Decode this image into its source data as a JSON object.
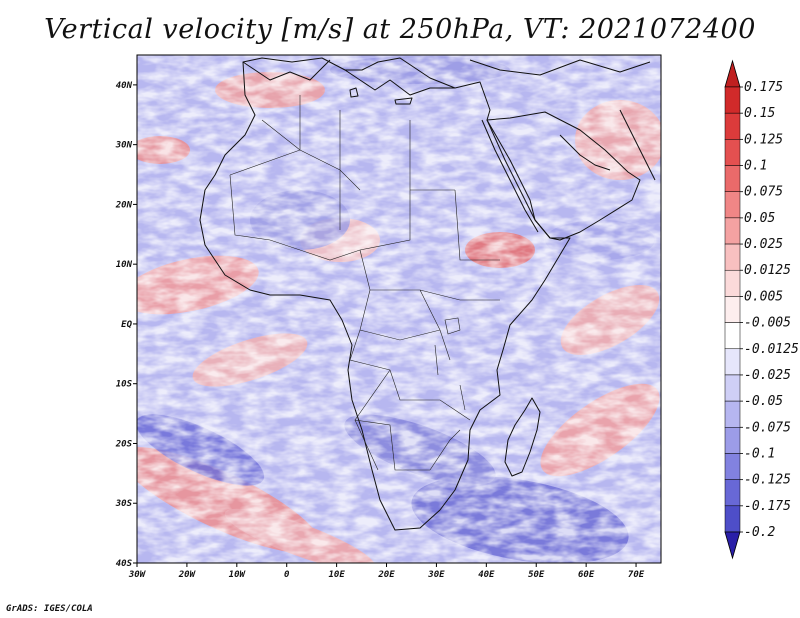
{
  "title": "Vertical velocity [m/s] at 250hPa, VT: 2021072400",
  "credit": "GrADS: IGES/COLA",
  "map": {
    "lon_range": [
      -30,
      75
    ],
    "lat_range": [
      -40,
      45
    ],
    "lon_ticks": [
      {
        "value": -30,
        "label": "30W"
      },
      {
        "value": -20,
        "label": "20W"
      },
      {
        "value": -10,
        "label": "10W"
      },
      {
        "value": 0,
        "label": "0"
      },
      {
        "value": 10,
        "label": "10E"
      },
      {
        "value": 20,
        "label": "20E"
      },
      {
        "value": 30,
        "label": "30E"
      },
      {
        "value": 40,
        "label": "40E"
      },
      {
        "value": 50,
        "label": "50E"
      },
      {
        "value": 60,
        "label": "60E"
      },
      {
        "value": 70,
        "label": "70E"
      }
    ],
    "lat_ticks": [
      {
        "value": 40,
        "label": "40N"
      },
      {
        "value": 30,
        "label": "30N"
      },
      {
        "value": 20,
        "label": "20N"
      },
      {
        "value": 10,
        "label": "10N"
      },
      {
        "value": 0,
        "label": "EQ"
      },
      {
        "value": -10,
        "label": "10S"
      },
      {
        "value": -20,
        "label": "20S"
      },
      {
        "value": -30,
        "label": "30S"
      },
      {
        "value": -40,
        "label": "40S"
      }
    ]
  },
  "colorbar": {
    "levels": [
      {
        "label": "0.175",
        "color": "#d12a2a"
      },
      {
        "label": "0.15",
        "color": "#dc3b3b"
      },
      {
        "label": "0.125",
        "color": "#e45050"
      },
      {
        "label": "0.1",
        "color": "#ea6a6a"
      },
      {
        "label": "0.075",
        "color": "#f08686"
      },
      {
        "label": "0.05",
        "color": "#f4a2a2"
      },
      {
        "label": "0.025",
        "color": "#f8c0c0"
      },
      {
        "label": "0.0125",
        "color": "#fbdada"
      },
      {
        "label": "0.005",
        "color": "#fdeeee"
      },
      {
        "label": "-0.005",
        "color": "#ffffff"
      },
      {
        "label": "-0.0125",
        "color": "#e6e6fb"
      },
      {
        "label": "-0.025",
        "color": "#cfcff6"
      },
      {
        "label": "-0.05",
        "color": "#b6b6f0"
      },
      {
        "label": "-0.075",
        "color": "#9c9ce8"
      },
      {
        "label": "-0.1",
        "color": "#8282e0"
      },
      {
        "label": "-0.125",
        "color": "#6868d6"
      },
      {
        "label": "-0.175",
        "color": "#4e4ec8"
      },
      {
        "label": "-0.2",
        "color": "#3434b8"
      }
    ],
    "top_color": "#c02020",
    "bottom_color": "#2a1fa8"
  }
}
